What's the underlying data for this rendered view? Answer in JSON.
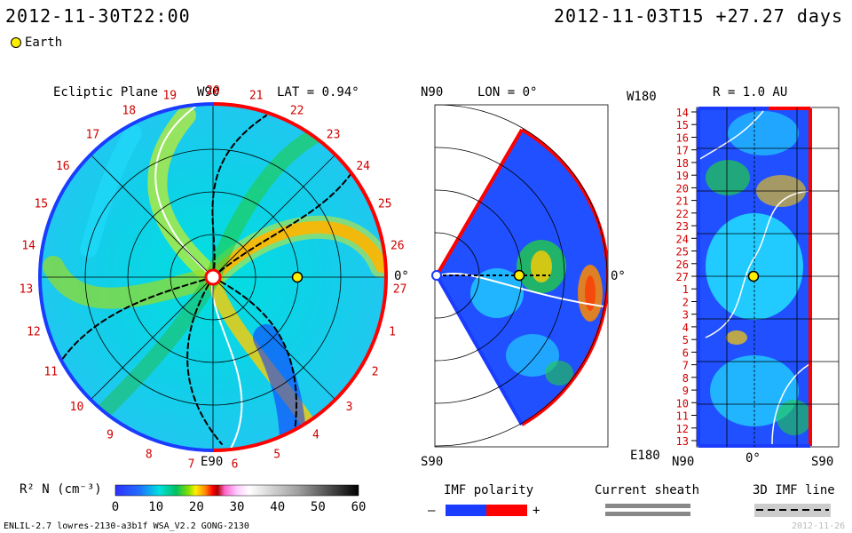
{
  "header": {
    "left_datetime": "2012-11-30T22:00",
    "right_datetime": "2012-11-03T15 +27.27 days"
  },
  "legend_top": {
    "earth_label": "Earth"
  },
  "ecliptic": {
    "title": "Ecliptic Plane",
    "top_label": "W90",
    "bottom_label": "E90",
    "lat_label": "LAT = 0.94°",
    "zero_label": "0°",
    "numbers": [
      "20",
      "21",
      "22",
      "23",
      "24",
      "25",
      "26",
      "27",
      "1",
      "2",
      "3",
      "4",
      "5",
      "6",
      "7",
      "8",
      "9",
      "10",
      "11",
      "12",
      "13",
      "14",
      "15",
      "16",
      "17",
      "18",
      "19"
    ]
  },
  "meridional": {
    "n_label": "N90",
    "s_label": "S90",
    "lon_label": "LON = 0°",
    "zero_label": "0°"
  },
  "synoptic": {
    "w_label": "W180",
    "e_label": "E180",
    "r_label": "R = 1.0 AU",
    "bottom_left": "N90",
    "bottom_mid": "0°",
    "bottom_right": "S90",
    "rows": [
      "14",
      "15",
      "16",
      "17",
      "18",
      "19",
      "20",
      "21",
      "22",
      "23",
      "24",
      "25",
      "26",
      "27",
      "1",
      "2",
      "3",
      "4",
      "5",
      "6",
      "7",
      "8",
      "9",
      "10",
      "11",
      "12",
      "13"
    ]
  },
  "colorbar": {
    "label": "R² N (cm⁻³)",
    "ticks": [
      "0",
      "10",
      "20",
      "30",
      "40",
      "50",
      "60"
    ]
  },
  "imf": {
    "title": "IMF polarity",
    "minus": "–",
    "plus": "+"
  },
  "current_sheath": {
    "title": "Current sheath"
  },
  "imf_line": {
    "title": "3D IMF line"
  },
  "footer": {
    "left": "ENLIL-2.7 lowres-2130-a3b1f WSA_V2.2 GONG-2130",
    "right": "2012-11-26"
  },
  "colors": {
    "red": "#ff0000",
    "blue": "#1a3cff",
    "earth": "#ffee00"
  }
}
